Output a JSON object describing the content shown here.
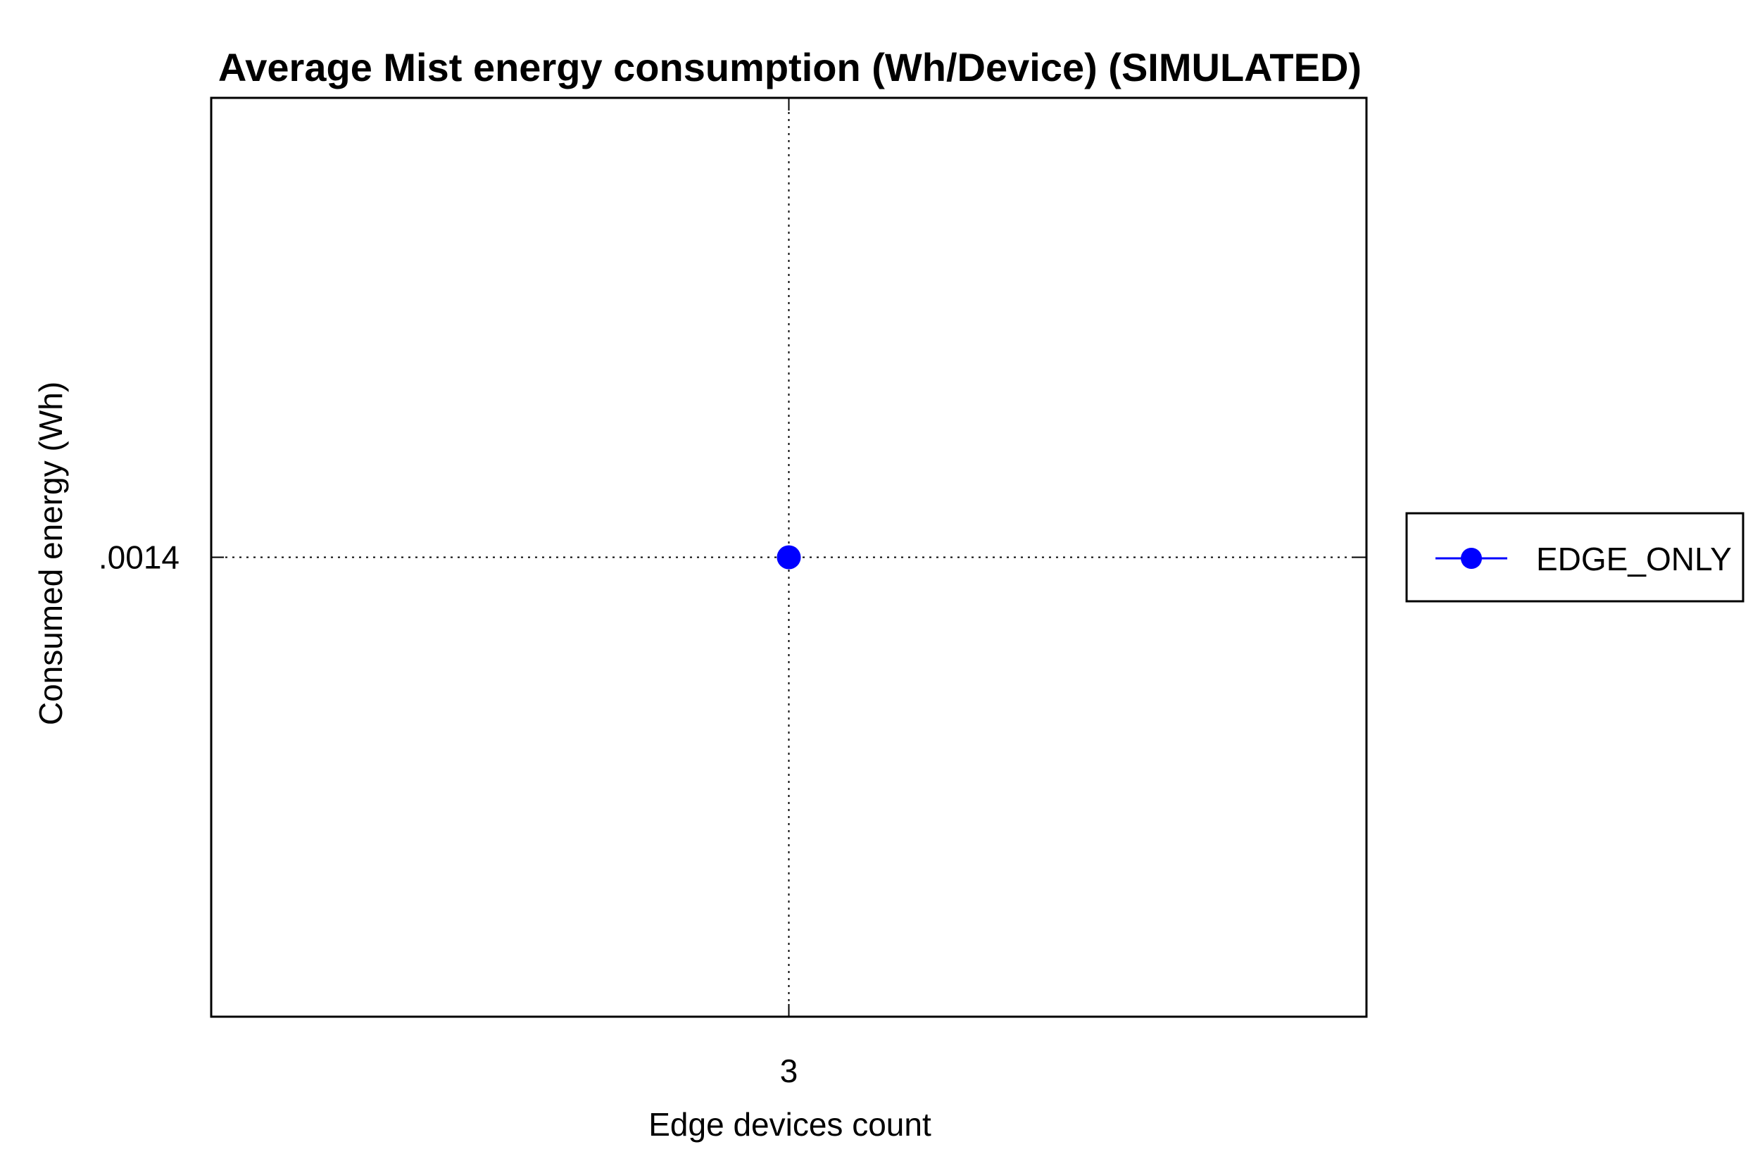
{
  "chart_data": {
    "type": "line",
    "title": "Average Mist energy consumption (Wh/Device) (SIMULATED)",
    "xlabel": "Edge devices count",
    "ylabel": "Consumed energy (Wh)",
    "x_ticks": [
      {
        "value": 3,
        "label": "3"
      }
    ],
    "y_ticks": [
      {
        "value": 0.0014,
        "label": ".0014"
      }
    ],
    "xlim": [
      2,
      4
    ],
    "ylim": [
      0.0012,
      0.0016
    ],
    "grid": true,
    "legend_position": "right",
    "series": [
      {
        "name": "EDGE_ONLY",
        "color": "#0000ff",
        "marker": "circle",
        "points": [
          {
            "x": 3,
            "y": 0.0014
          }
        ]
      }
    ]
  }
}
